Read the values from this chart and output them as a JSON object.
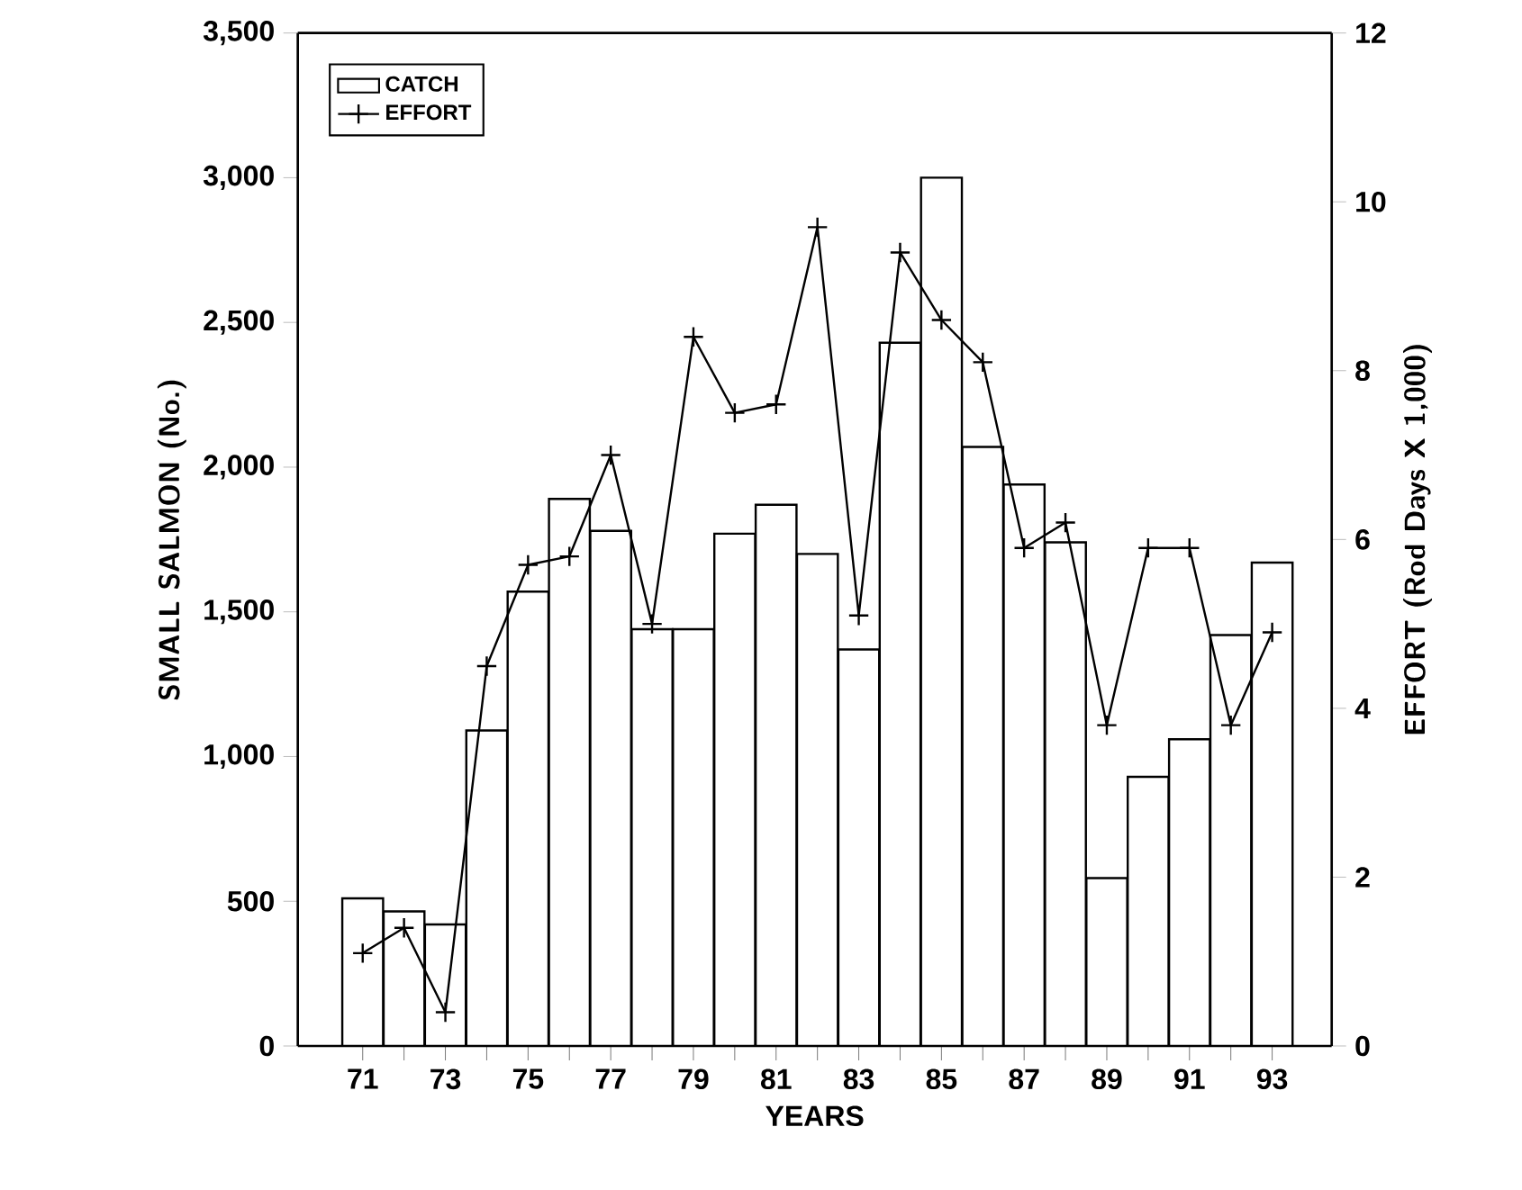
{
  "chart_data": {
    "type": "bar",
    "xlabel": "YEARS",
    "ylabel": "SMALL SALMON (No.)",
    "y2label": "EFFORT (Rod Days X 1,000)",
    "categories": [
      "71",
      null,
      "73",
      null,
      "75",
      null,
      "77",
      null,
      "79",
      null,
      "81",
      null,
      "83",
      null,
      "85",
      null,
      "87",
      null,
      "89",
      null,
      "91",
      null,
      "93"
    ],
    "series": [
      {
        "name": "CATCH",
        "color": "#000000",
        "values": [
          510,
          465,
          420,
          1090,
          1570,
          1890,
          1780,
          1440,
          1440,
          1770,
          1870,
          1700,
          1370,
          2430,
          3000,
          2070,
          1940,
          1740,
          580,
          930,
          1060,
          1420,
          1670
        ]
      },
      {
        "name": "EFFORT",
        "type": "line",
        "axis": "y2",
        "color": "#000000",
        "marker": "cross",
        "values": [
          1.1,
          1.4,
          0.4,
          4.5,
          5.7,
          5.8,
          7.0,
          5.0,
          8.4,
          7.5,
          7.6,
          9.7,
          5.1,
          9.4,
          8.6,
          8.1,
          5.9,
          6.2,
          3.8,
          5.9,
          5.9,
          3.8,
          4.9
        ]
      }
    ],
    "ylim": [
      0,
      3500
    ],
    "yticks": [
      0,
      {
        "value": 500,
        "label": "500"
      },
      {
        "value": 1000,
        "label": "1,000"
      },
      {
        "value": 1500,
        "label": "1,500"
      },
      {
        "value": 2000,
        "label": "2,000"
      },
      {
        "value": 2500,
        "label": "2,500"
      },
      {
        "value": 3000,
        "label": "3,000"
      },
      {
        "value": 3500,
        "label": "3,500"
      }
    ],
    "y2lim": [
      0,
      12
    ],
    "y2ticks": [
      0,
      2,
      4,
      6,
      8,
      10,
      12
    ],
    "legend": "top left"
  }
}
